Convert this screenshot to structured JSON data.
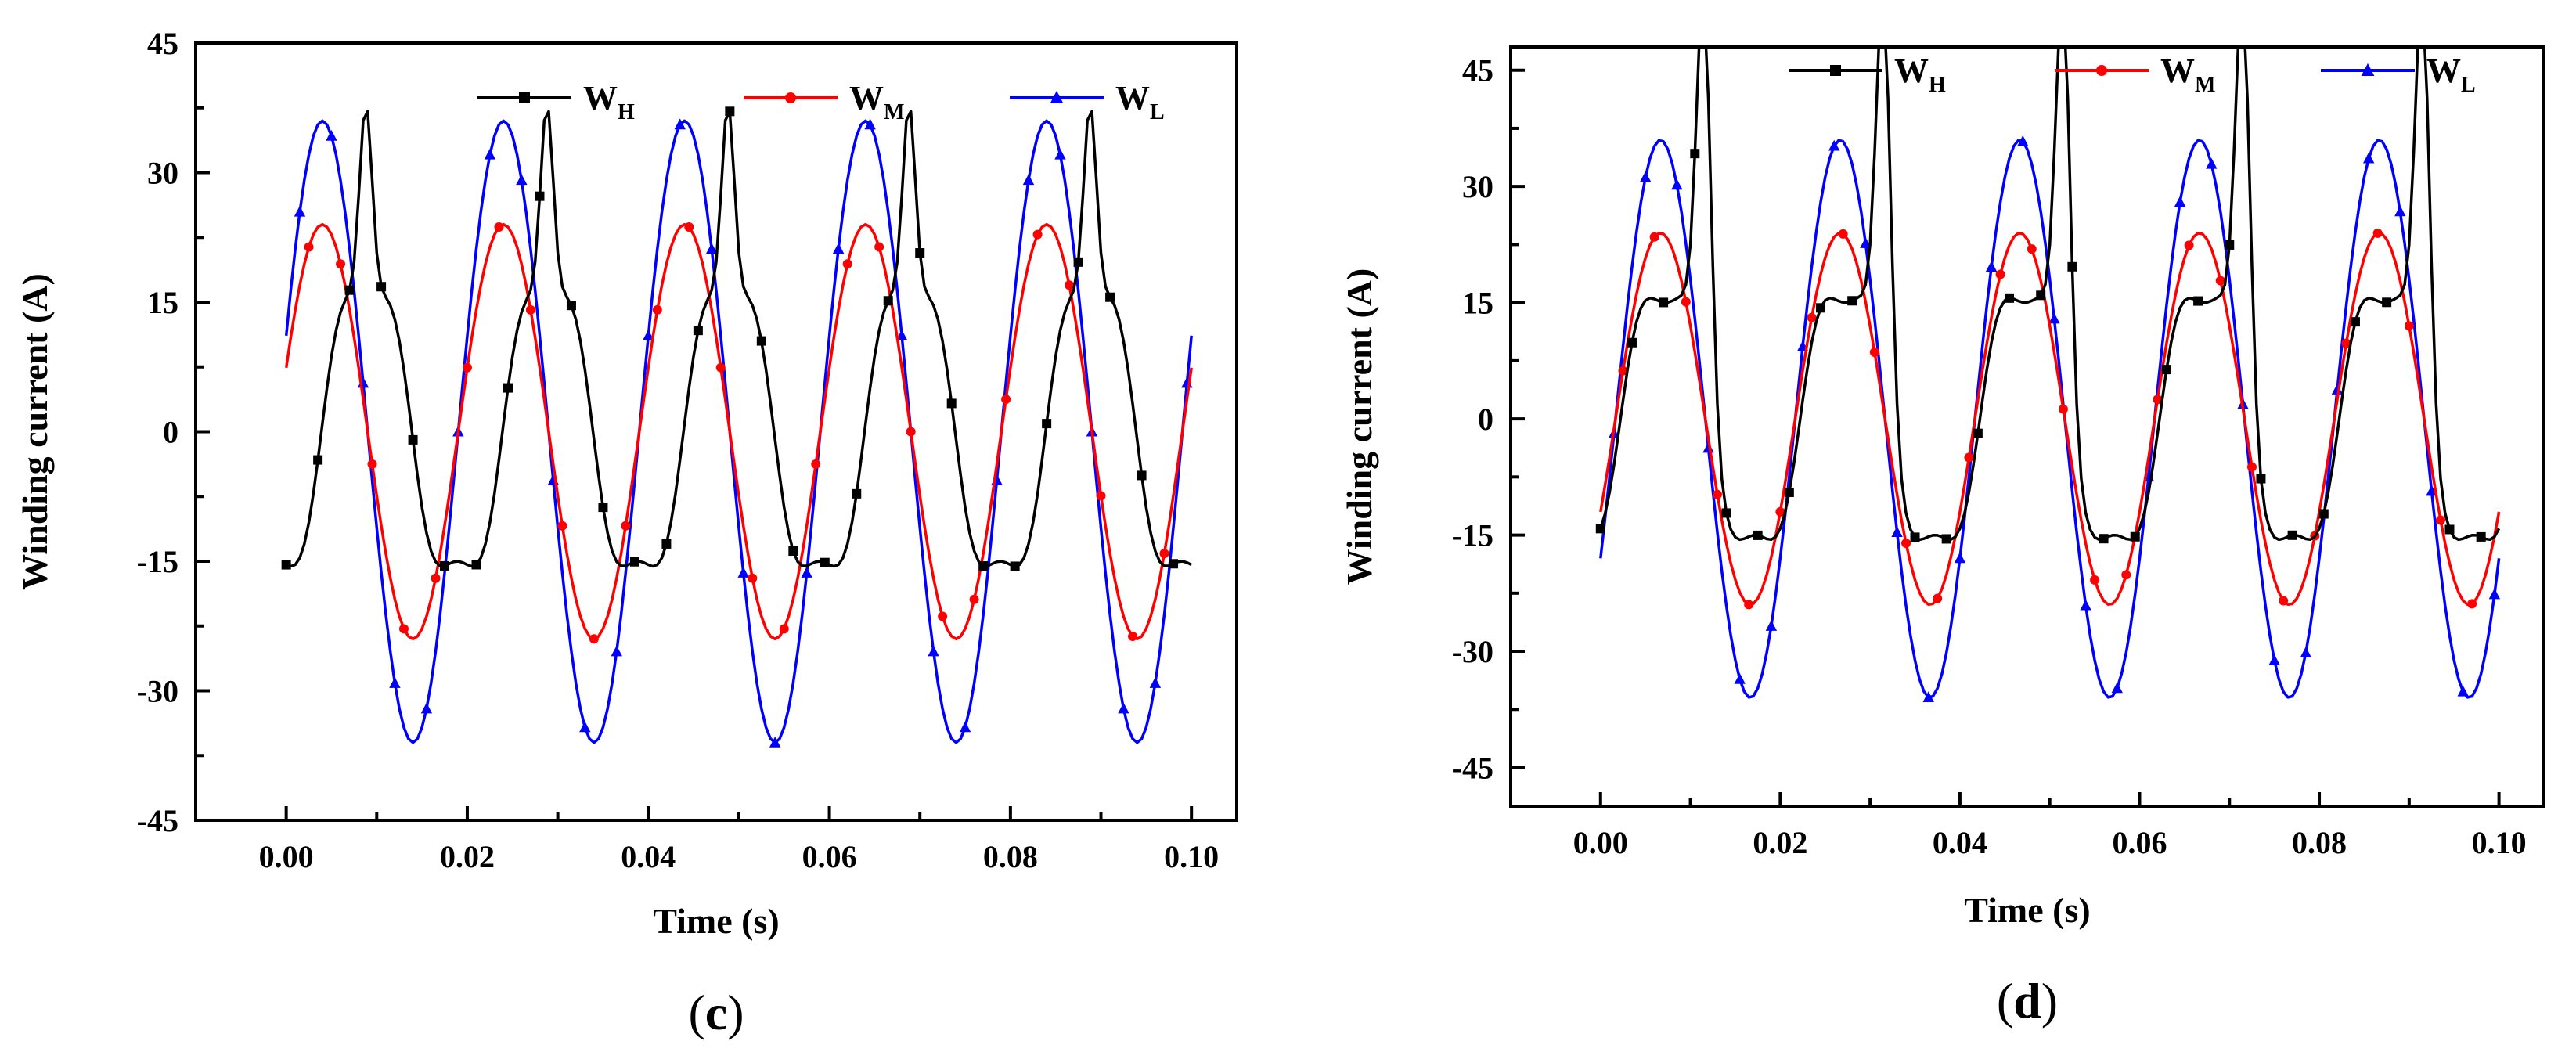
{
  "colors": {
    "W_H": "#000000",
    "W_M": "#ff0000",
    "W_L": "#0000ff",
    "axis": "#000000"
  },
  "chart_data": [
    {
      "panel": "(c)",
      "panel_letter": "c",
      "type": "line",
      "title": "",
      "xlabel": "Time (s)",
      "ylabel": "Winding current (A)",
      "xlim": [
        -0.01,
        0.105
      ],
      "ylim": [
        -45,
        45
      ],
      "xticks": [
        0.0,
        0.02,
        0.04,
        0.06,
        0.08,
        0.1
      ],
      "xtick_labels": [
        "0.00",
        "0.02",
        "0.04",
        "0.06",
        "0.08",
        "0.10"
      ],
      "yticks": [
        -45,
        -30,
        -15,
        0,
        15,
        30,
        45
      ],
      "ytick_labels": [
        "-45",
        "-30",
        "-15",
        "0",
        "15",
        "30",
        "45"
      ],
      "legend": {
        "location": "top",
        "entries": [
          {
            "key": "W_H",
            "main": "W",
            "sub": "H"
          },
          {
            "key": "W_M",
            "main": "W",
            "sub": "M"
          },
          {
            "key": "W_L",
            "main": "W",
            "sub": "L"
          }
        ]
      },
      "sampling": {
        "t_start": 0.0,
        "t_end": 0.1,
        "step": 0.0005
      },
      "series": [
        {
          "key": "W_H",
          "name": "W_H",
          "marker": "square",
          "kind": "distorted",
          "amplitude": 18,
          "phase_deg": -70,
          "third_harmonic_amp": 3,
          "spike_amp": 23,
          "spike_center_s": 0.0088,
          "spike_width_s": 0.0007
        },
        {
          "key": "W_M",
          "name": "W_M",
          "marker": "circle",
          "kind": "sine",
          "amplitude": 24,
          "phase_deg": 18
        },
        {
          "key": "W_L",
          "name": "W_L",
          "marker": "triangle",
          "kind": "sine",
          "amplitude": 36,
          "phase_deg": 18
        }
      ]
    },
    {
      "panel": "(d)",
      "panel_letter": "d",
      "type": "line",
      "title": "",
      "xlabel": "Time (s)",
      "ylabel": "Winding current (A)",
      "xlim": [
        -0.01,
        0.105
      ],
      "ylim": [
        -50,
        48
      ],
      "xticks": [
        0.0,
        0.02,
        0.04,
        0.06,
        0.08,
        0.1
      ],
      "xtick_labels": [
        "0.00",
        "0.02",
        "0.04",
        "0.06",
        "0.08",
        "0.10"
      ],
      "yticks": [
        -45,
        -30,
        -15,
        0,
        15,
        30,
        45
      ],
      "ytick_labels": [
        "-45",
        "-30",
        "-15",
        "0",
        "15",
        "30",
        "45"
      ],
      "legend": {
        "location": "top",
        "entries": [
          {
            "key": "W_H",
            "main": "W",
            "sub": "H"
          },
          {
            "key": "W_M",
            "main": "W",
            "sub": "M"
          },
          {
            "key": "W_L",
            "main": "W",
            "sub": "L"
          }
        ]
      },
      "sampling": {
        "t_start": 0.0,
        "t_end": 0.1,
        "step": 0.0005
      },
      "series": [
        {
          "key": "W_H",
          "name": "W_H",
          "marker": "square",
          "kind": "distorted",
          "amplitude": 18,
          "phase_deg": -40,
          "third_harmonic_amp": 3,
          "spike_amp": 48,
          "spike_center_s": 0.0115,
          "spike_width_s": 0.0008
        },
        {
          "key": "W_M",
          "name": "W_M",
          "marker": "circle",
          "kind": "sine",
          "amplitude": 24,
          "phase_deg": -30
        },
        {
          "key": "W_L",
          "name": "W_L",
          "marker": "triangle",
          "kind": "sine",
          "amplitude": 36,
          "phase_deg": -30
        }
      ]
    }
  ]
}
